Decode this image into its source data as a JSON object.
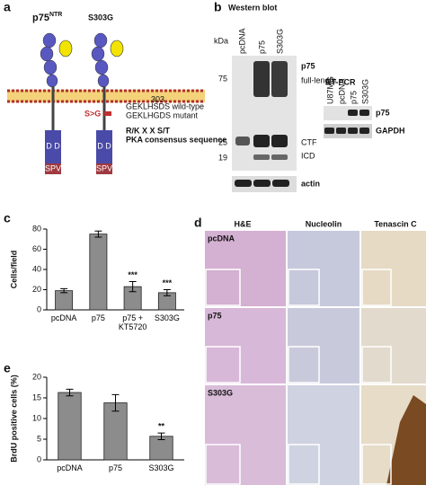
{
  "panel_a": {
    "label": "a",
    "receptors": [
      {
        "name": "p75",
        "sup": "NTR"
      },
      {
        "name": "S303G"
      }
    ],
    "domain": "D D",
    "tail": "SPV",
    "site_number": "303",
    "wild_type": "GEKLHSDS wild-type",
    "mutation": "S>G",
    "mutant": "GEKLHGDS mutant",
    "motif": "R/K X X S/T",
    "motif_note": "PKA consensus sequence"
  },
  "panel_b": {
    "label": "b",
    "western": {
      "title": "Western blot",
      "unit": "kDa",
      "lanes": [
        "pcDNA",
        "p75",
        "S303G"
      ],
      "protein": "p75",
      "markers": [
        "75",
        "25",
        "19"
      ],
      "bands": [
        "full-length",
        "CTF",
        "ICD"
      ],
      "loading": "actin"
    },
    "rtpcr": {
      "title": "RT-PCR",
      "lanes": [
        "U87MG",
        "pcDNA",
        "p75",
        "S303G"
      ],
      "rows": [
        "p75",
        "GAPDH"
      ]
    }
  },
  "panel_d": {
    "label": "d",
    "columns": [
      "H&E",
      "Nucleolin",
      "Tenascin C"
    ],
    "rows": [
      "pcDNA",
      "p75",
      "S303G"
    ]
  },
  "chart_data": [
    {
      "type": "bar",
      "label": "c",
      "y_label": "Cells/field",
      "categories": [
        "pcDNA",
        "p75",
        "p75 + KT5720",
        "S303G"
      ],
      "values": [
        19,
        75,
        23,
        17
      ],
      "errors": [
        2,
        3,
        5,
        3
      ],
      "annotations": [
        null,
        null,
        "***",
        "***"
      ],
      "color": "#8c8c8c",
      "ylim": [
        0,
        80
      ],
      "yticks": [
        0,
        20,
        40,
        60,
        80
      ]
    },
    {
      "type": "bar",
      "label": "e",
      "y_label": "BrdU positive cells (%)",
      "categories": [
        "pcDNA",
        "p75",
        "S303G"
      ],
      "values": [
        16.3,
        13.8,
        5.7
      ],
      "errors": [
        0.8,
        2,
        0.8
      ],
      "annotations": [
        null,
        null,
        "**"
      ],
      "color": "#8c8c8c",
      "ylim": [
        0,
        20
      ],
      "yticks": [
        0,
        5,
        10,
        15,
        20
      ]
    }
  ]
}
